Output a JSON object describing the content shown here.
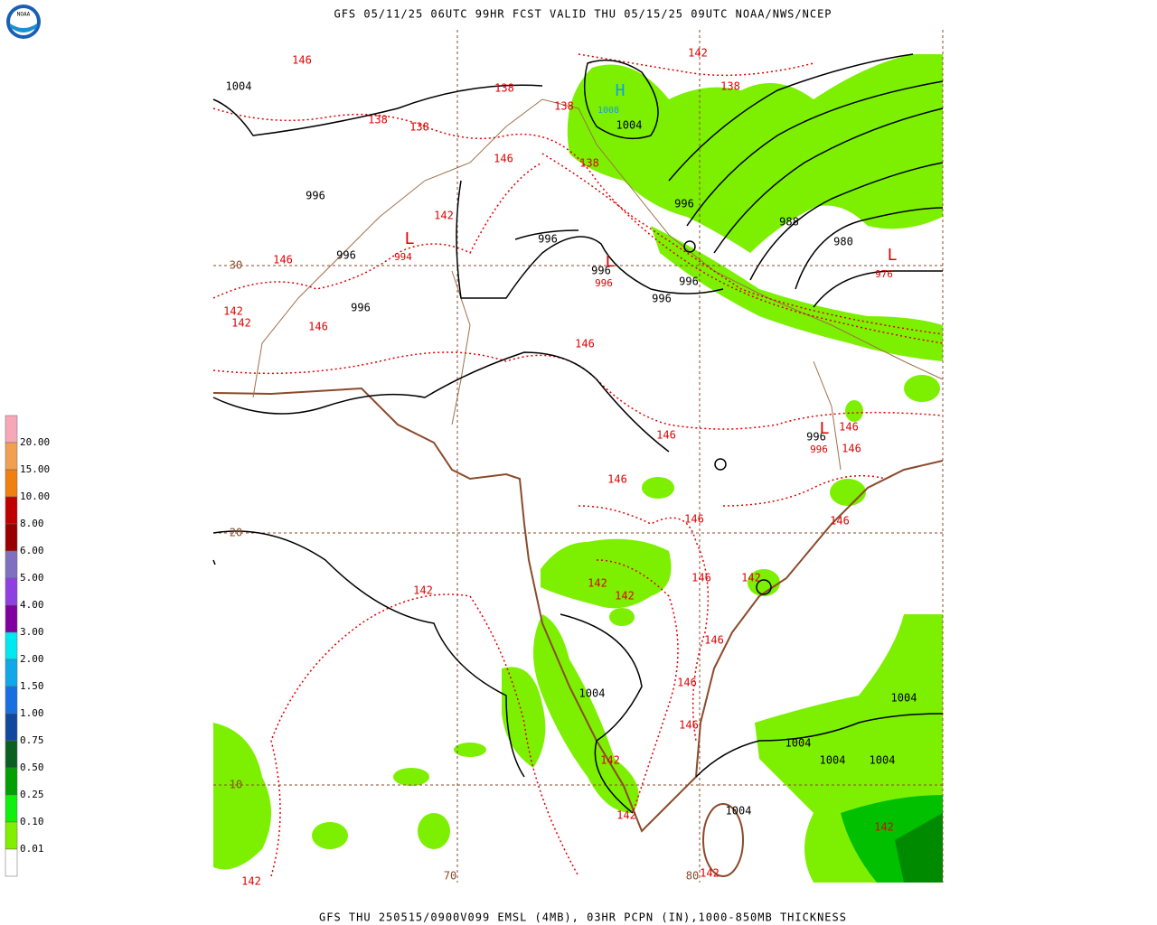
{
  "header": {
    "title": "GFS 05/11/25 06UTC 99HR FCST VALID THU 05/15/25 09UTC NOAA/NWS/NCEP",
    "logo": "NOAA"
  },
  "footer": "GFS THU 250515/0900V099 EMSL (4MB), 03HR PCPN (IN),1000-850MB THICKNESS",
  "legend": {
    "labels": [
      "20.00",
      "15.00",
      "10.00",
      "8.00",
      "6.00",
      "5.00",
      "4.00",
      "3.00",
      "2.00",
      "1.50",
      "1.00",
      "0.75",
      "0.50",
      "0.25",
      "0.10",
      "0.01"
    ]
  },
  "map": {
    "isobar_labels": [
      "1004",
      "1004",
      "996",
      "996",
      "996",
      "996",
      "996",
      "996",
      "996",
      "996",
      "988",
      "980",
      "996",
      "1004",
      "1004",
      "1004",
      "1004",
      "1004",
      "1004"
    ],
    "centers": [
      "H",
      "1008",
      "L",
      "994",
      "L",
      "996",
      "L",
      "976",
      "L",
      "996"
    ],
    "thickness_labels": [
      "146",
      "138",
      "138",
      "138",
      "138",
      "138",
      "138",
      "142",
      "146",
      "142",
      "146",
      "142",
      "142",
      "146",
      "146",
      "146",
      "146",
      "146",
      "146",
      "146",
      "146",
      "142",
      "142",
      "146",
      "142",
      "142",
      "146",
      "146",
      "146",
      "142",
      "142",
      "142",
      "142",
      "142"
    ],
    "grid_labels": [
      "30",
      "20",
      "10",
      "70",
      "80"
    ]
  }
}
